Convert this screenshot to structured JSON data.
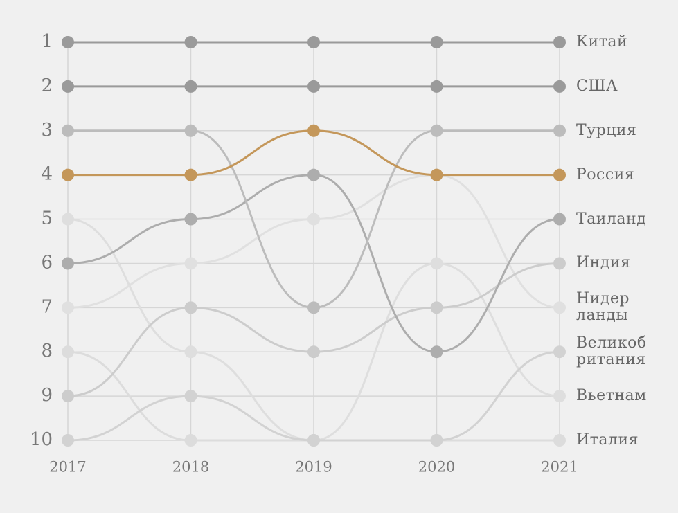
{
  "chart_data": {
    "type": "bump",
    "categories": [
      "2017",
      "2018",
      "2019",
      "2020",
      "2021"
    ],
    "ylim": [
      1,
      10
    ],
    "inverted": true,
    "yticks": [
      1,
      2,
      3,
      4,
      5,
      6,
      7,
      8,
      9,
      10
    ],
    "grid": true,
    "series": [
      {
        "name": "Италия",
        "color": "#dcdcdc",
        "values": [
          8,
          10,
          10,
          10,
          10
        ]
      },
      {
        "name": "Вьетнам",
        "color": "#dedede",
        "values": [
          5,
          8,
          10,
          6,
          9
        ]
      },
      {
        "name": "Великоб\nритания",
        "color": "#d2d2d2",
        "values": [
          10,
          9,
          10,
          10,
          8
        ]
      },
      {
        "name": "Нидер\nланды",
        "color": "#e0e0e0",
        "values": [
          7,
          6,
          5,
          4,
          7
        ]
      },
      {
        "name": "Индия",
        "color": "#cccccc",
        "values": [
          9,
          7,
          8,
          7,
          6
        ]
      },
      {
        "name": "Таиланд",
        "color": "#adadad",
        "values": [
          6,
          5,
          4,
          8,
          5
        ]
      },
      {
        "name": "Турция",
        "color": "#bcbcbc",
        "values": [
          3,
          3,
          7,
          3,
          3
        ]
      },
      {
        "name": "США",
        "color": "#9a9a9a",
        "values": [
          2,
          2,
          2,
          2,
          2
        ]
      },
      {
        "name": "Китай",
        "color": "#9a9a9a",
        "values": [
          1,
          1,
          1,
          1,
          1
        ]
      },
      {
        "name": "Россия",
        "color": "#c4975a",
        "values": [
          4,
          4,
          3,
          4,
          4
        ]
      }
    ]
  }
}
